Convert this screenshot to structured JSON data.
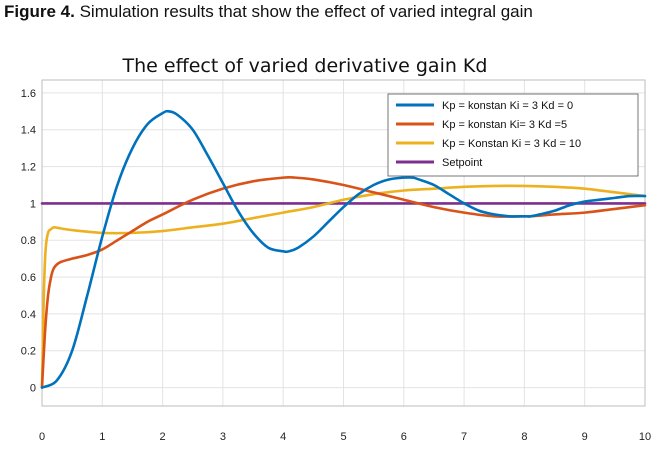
{
  "caption": {
    "label": "Figure 4.",
    "text": "Simulation results that show the effect of varied integral gain"
  },
  "chart_data": {
    "type": "line",
    "title": "The effect of varied derivative gain Kd",
    "xlabel": "",
    "ylabel": "",
    "xlim": [
      0,
      10
    ],
    "ylim": [
      -0.1,
      1.67
    ],
    "xticks": [
      0,
      1,
      2,
      3,
      4,
      5,
      6,
      7,
      8,
      9,
      10
    ],
    "yticks": [
      0,
      0.2,
      0.4,
      0.6,
      0.8,
      1,
      1.2,
      1.4,
      1.6
    ],
    "grid": true,
    "legend_position": "top-right",
    "series": [
      {
        "name": "Kp = konstan Ki = 3 Kd = 0",
        "color": "#0072BD",
        "x": [
          0,
          0.25,
          0.5,
          0.75,
          1.0,
          1.25,
          1.5,
          1.75,
          2.0,
          2.1,
          2.25,
          2.5,
          2.75,
          3.0,
          3.25,
          3.5,
          3.75,
          4.0,
          4.1,
          4.25,
          4.5,
          4.75,
          5.0,
          5.25,
          5.5,
          5.75,
          6.0,
          6.15,
          6.25,
          6.5,
          6.75,
          7.0,
          7.25,
          7.5,
          7.75,
          8.0,
          8.1,
          8.25,
          8.5,
          8.75,
          9.0,
          9.25,
          9.5,
          9.75,
          10.0
        ],
        "y": [
          0,
          0.04,
          0.2,
          0.5,
          0.82,
          1.1,
          1.3,
          1.43,
          1.49,
          1.5,
          1.48,
          1.4,
          1.26,
          1.11,
          0.96,
          0.84,
          0.76,
          0.74,
          0.74,
          0.76,
          0.82,
          0.9,
          0.98,
          1.05,
          1.1,
          1.13,
          1.14,
          1.14,
          1.13,
          1.1,
          1.05,
          1.0,
          0.96,
          0.94,
          0.93,
          0.93,
          0.93,
          0.94,
          0.96,
          0.99,
          1.01,
          1.02,
          1.03,
          1.04,
          1.04
        ]
      },
      {
        "name": "Kp = konstan Ki= 3 Kd =5",
        "color": "#D95319",
        "x": [
          0,
          0.05,
          0.1,
          0.15,
          0.2,
          0.3,
          0.5,
          0.75,
          1.0,
          1.25,
          1.5,
          1.75,
          2.0,
          2.5,
          3.0,
          3.5,
          4.0,
          4.2,
          4.5,
          5.0,
          5.5,
          6.0,
          6.5,
          7.0,
          7.5,
          8.0,
          8.1,
          8.5,
          9.0,
          9.5,
          10.0
        ],
        "y": [
          0,
          0.3,
          0.5,
          0.6,
          0.65,
          0.68,
          0.7,
          0.72,
          0.75,
          0.8,
          0.85,
          0.9,
          0.94,
          1.02,
          1.08,
          1.12,
          1.14,
          1.14,
          1.13,
          1.1,
          1.06,
          1.02,
          0.98,
          0.95,
          0.93,
          0.93,
          0.93,
          0.94,
          0.95,
          0.97,
          0.99
        ]
      },
      {
        "name": "Kp = Konstan Ki = 3 Kd = 10",
        "color": "#EDB120",
        "x": [
          0,
          0.03,
          0.06,
          0.1,
          0.15,
          0.2,
          0.3,
          0.5,
          1.0,
          1.5,
          2.0,
          2.5,
          3.0,
          3.5,
          4.0,
          4.5,
          5.0,
          5.5,
          6.0,
          6.5,
          7.0,
          7.5,
          8.0,
          8.5,
          9.0,
          9.5,
          10.0
        ],
        "y": [
          0,
          0.5,
          0.75,
          0.84,
          0.86,
          0.87,
          0.865,
          0.855,
          0.84,
          0.84,
          0.85,
          0.87,
          0.89,
          0.92,
          0.95,
          0.98,
          1.02,
          1.05,
          1.07,
          1.08,
          1.09,
          1.095,
          1.095,
          1.09,
          1.08,
          1.06,
          1.04
        ]
      },
      {
        "name": "Setpoint",
        "color": "#7E2F8E",
        "x": [
          0,
          10
        ],
        "y": [
          1,
          1
        ]
      }
    ]
  }
}
